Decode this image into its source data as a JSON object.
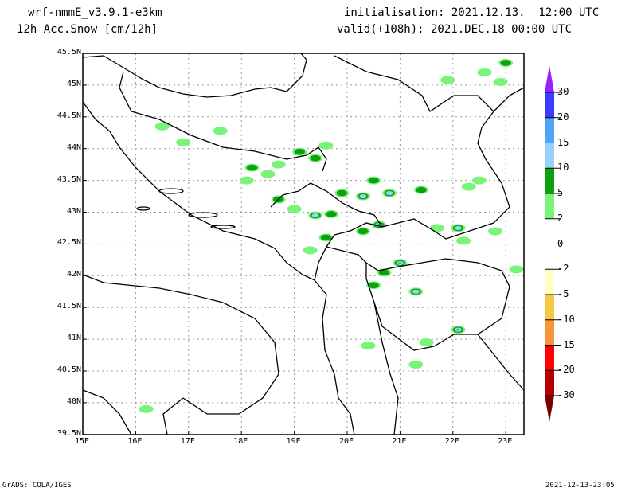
{
  "header": {
    "model": "wrf-nmmE_v3.9.1-e3km",
    "field": "12h Acc.Snow [cm/12h]",
    "init": "initialisation: 2021.12.13.  12:00 UTC",
    "valid": "valid(+108h): 2021.DEC.18 00:00 UTC"
  },
  "footer": {
    "left": "GrADS: COLA/IGES",
    "right": "2021-12-13-23:05"
  },
  "axes": {
    "lon_labels": [
      "15E",
      "16E",
      "17E",
      "18E",
      "19E",
      "20E",
      "21E",
      "22E",
      "23E"
    ],
    "lat_labels": [
      "45.5N",
      "45N",
      "44.5N",
      "44N",
      "43.5N",
      "43N",
      "42.5N",
      "42N",
      "41.5N",
      "41N",
      "40.5N",
      "40N",
      "39.5N"
    ]
  },
  "legend": {
    "bins": [
      {
        "label": "30",
        "color": "#9b1fff"
      },
      {
        "label": "20",
        "color": "#3c3cff"
      },
      {
        "label": "15",
        "color": "#50a5f5"
      },
      {
        "label": "10",
        "color": "#96d2fa"
      },
      {
        "label": "5",
        "color": "#0fa00f"
      },
      {
        "label": "2",
        "color": "#78f578"
      },
      {
        "label": "0",
        "color": "#ffffff"
      },
      {
        "label": "-2",
        "color": "#ffffff"
      },
      {
        "label": "-5",
        "color": "#ffffc8"
      },
      {
        "label": "-10",
        "color": "#f5c841"
      },
      {
        "label": "-15",
        "color": "#f5963c"
      },
      {
        "label": "-20",
        "color": "#ff0000"
      },
      {
        "label": "-30",
        "color": "#b40000"
      }
    ],
    "low_color": "#780000"
  },
  "snow_patches": [
    [
      16.5,
      44.35,
      2
    ],
    [
      17.6,
      44.28,
      2
    ],
    [
      16.9,
      44.1,
      2
    ],
    [
      18.2,
      43.7,
      5
    ],
    [
      18.1,
      43.5,
      2
    ],
    [
      18.5,
      43.6,
      2
    ],
    [
      18.7,
      43.75,
      2
    ],
    [
      19.1,
      43.95,
      5
    ],
    [
      19.4,
      43.85,
      5
    ],
    [
      19.6,
      44.05,
      2
    ],
    [
      18.7,
      43.2,
      5
    ],
    [
      19.0,
      43.05,
      2
    ],
    [
      19.4,
      42.95,
      10
    ],
    [
      19.7,
      42.97,
      5
    ],
    [
      19.9,
      43.3,
      5
    ],
    [
      20.3,
      43.25,
      10
    ],
    [
      20.5,
      43.5,
      5
    ],
    [
      20.8,
      43.3,
      10
    ],
    [
      21.4,
      43.35,
      5
    ],
    [
      20.6,
      42.8,
      15
    ],
    [
      20.3,
      42.7,
      5
    ],
    [
      19.6,
      42.6,
      5
    ],
    [
      19.3,
      42.4,
      2
    ],
    [
      21.0,
      42.2,
      15
    ],
    [
      20.7,
      42.05,
      5
    ],
    [
      20.5,
      41.85,
      5
    ],
    [
      21.3,
      41.75,
      10
    ],
    [
      22.1,
      42.75,
      10
    ],
    [
      21.7,
      42.75,
      2
    ],
    [
      22.2,
      42.55,
      2
    ],
    [
      22.1,
      41.15,
      15
    ],
    [
      21.5,
      40.95,
      2
    ],
    [
      21.3,
      40.6,
      2
    ],
    [
      20.4,
      40.9,
      2
    ],
    [
      22.6,
      45.2,
      2
    ],
    [
      22.9,
      45.05,
      2
    ],
    [
      23.0,
      45.35,
      5
    ],
    [
      21.9,
      45.08,
      2
    ],
    [
      22.5,
      43.5,
      2
    ],
    [
      22.3,
      43.4,
      2
    ],
    [
      22.8,
      42.7,
      2
    ],
    [
      23.2,
      42.1,
      2
    ],
    [
      16.2,
      39.9,
      2
    ]
  ]
}
